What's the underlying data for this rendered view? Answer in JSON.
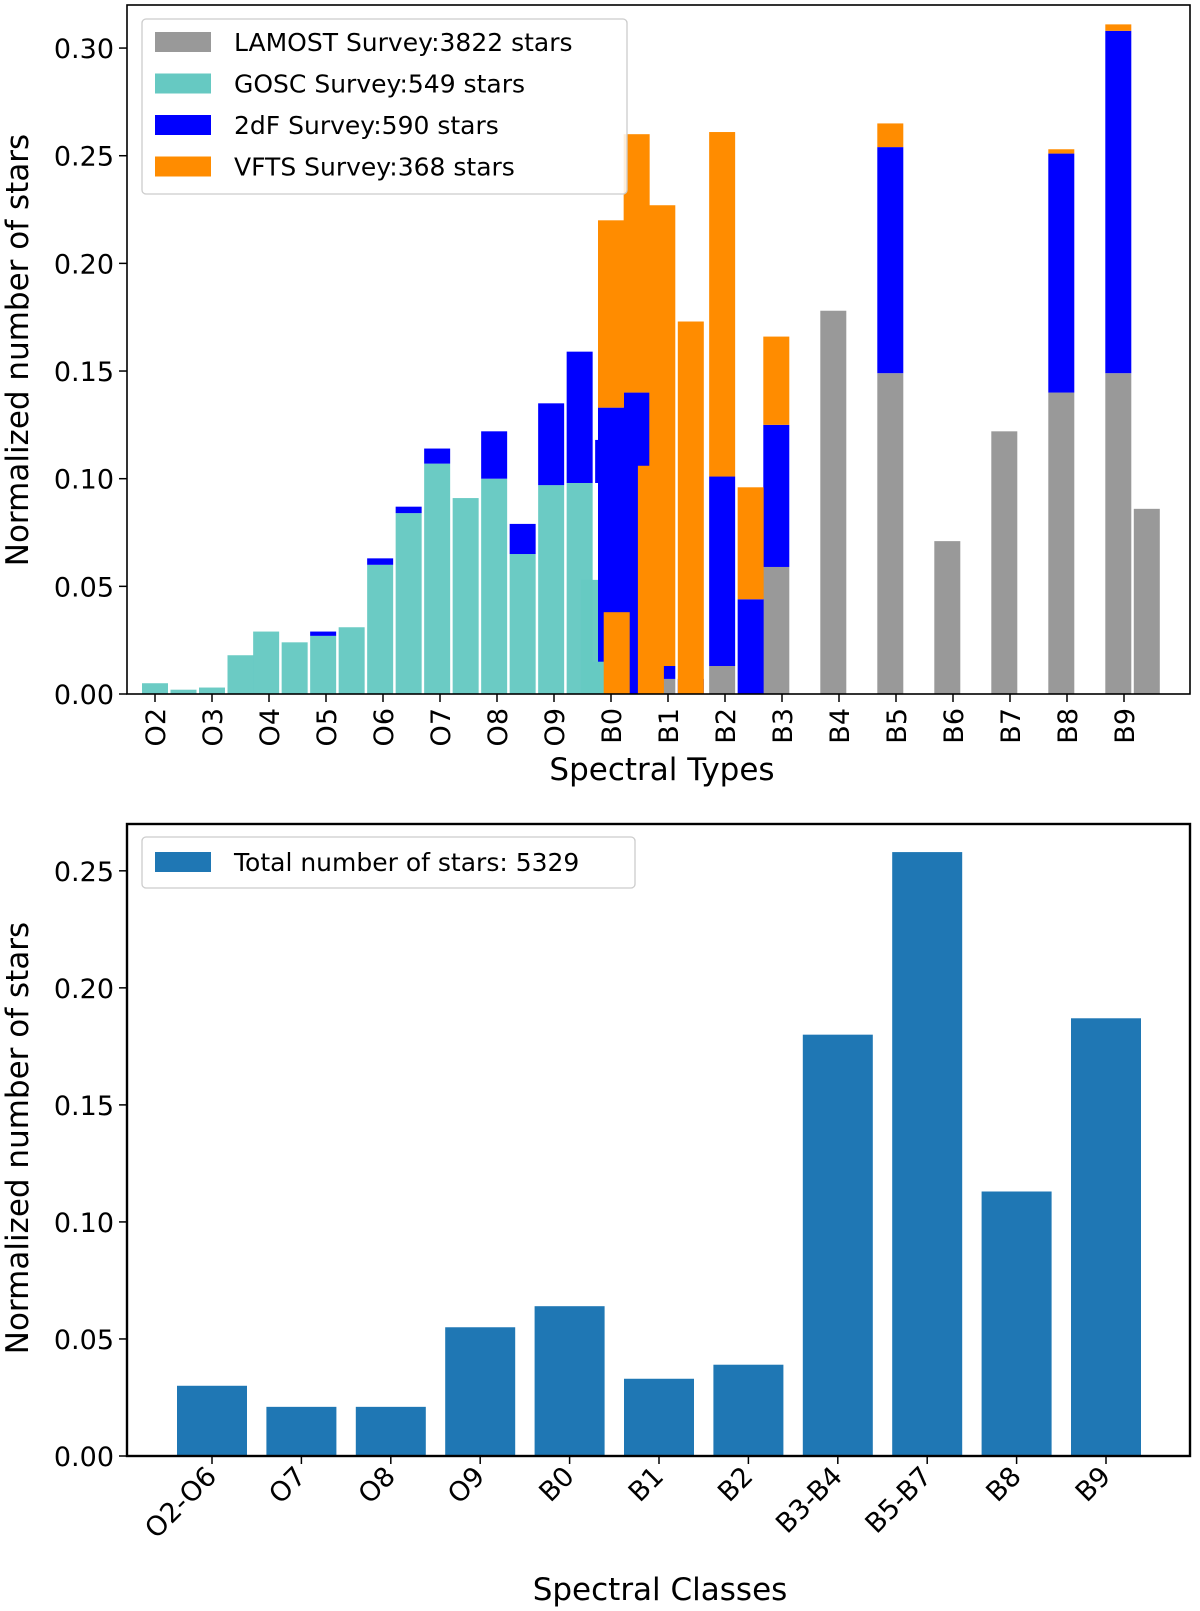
{
  "chart_data": [
    {
      "type": "bar",
      "stacked": true,
      "title": "",
      "xlabel": "Spectral Types",
      "ylabel": "Normalized number of stars",
      "ylim": [
        0,
        0.32
      ],
      "yticks": [
        "0.00",
        "0.05",
        "0.10",
        "0.15",
        "0.20",
        "0.25",
        "0.30"
      ],
      "xticks": [
        "O2",
        "O3",
        "O4",
        "O5",
        "O6",
        "O7",
        "O8",
        "O9",
        "B0",
        "B1",
        "B2",
        "B3",
        "B4",
        "B5",
        "B6",
        "B7",
        "B8",
        "B9"
      ],
      "legend": [
        {
          "label": "LAMOST Survey:3822 stars",
          "color": "#999999"
        },
        {
          "label": "GOSC Survey:549 stars",
          "color": "#66c9c2"
        },
        {
          "label": "2dF Survey:590 stars",
          "color": "#0000ff"
        },
        {
          "label": "VFTS Survey:368 stars",
          "color": "#ff8c00"
        }
      ],
      "legend_position": "top-left",
      "series": [
        {
          "name": "LAMOST Survey:3822 stars",
          "color": "#999999",
          "points": [
            [
              7.8,
              0.01
            ],
            [
              8.9,
              0.007
            ],
            [
              9.95,
              0.013
            ],
            [
              10.9,
              0.059
            ],
            [
              11.9,
              0.178
            ],
            [
              12.9,
              0.149
            ],
            [
              13.9,
              0.071
            ],
            [
              14.9,
              0.122
            ],
            [
              15.9,
              0.14
            ],
            [
              16.9,
              0.149
            ],
            [
              17.4,
              0.086
            ]
          ],
          "bases": [
            0,
            0,
            0,
            0,
            0,
            0,
            0,
            0,
            0,
            0,
            0
          ]
        },
        {
          "name": "GOSC Survey:549 stars",
          "color": "#66c9c2",
          "points": [
            [
              0.0,
              0.005
            ],
            [
              0.5,
              0.002
            ],
            [
              1.0,
              0.003
            ],
            [
              1.5,
              0.018
            ],
            [
              1.95,
              0.029
            ],
            [
              2.45,
              0.024
            ],
            [
              2.95,
              0.027
            ],
            [
              3.45,
              0.031
            ],
            [
              3.95,
              0.06
            ],
            [
              4.45,
              0.084
            ],
            [
              4.95,
              0.107
            ],
            [
              5.45,
              0.091
            ],
            [
              5.95,
              0.1
            ],
            [
              6.45,
              0.065
            ],
            [
              6.95,
              0.097
            ],
            [
              7.45,
              0.098
            ],
            [
              7.7,
              0.053
            ],
            [
              7.85,
              0.015
            ]
          ],
          "bases": [
            0,
            0,
            0,
            0,
            0,
            0,
            0,
            0,
            0,
            0,
            0,
            0,
            0,
            0,
            0,
            0,
            0,
            0
          ]
        },
        {
          "name": "2dF Survey:590 stars",
          "color": "#0000ff",
          "points": [
            [
              2.95,
              0.002
            ],
            [
              3.95,
              0.003
            ],
            [
              4.45,
              0.003
            ],
            [
              4.95,
              0.007
            ],
            [
              5.95,
              0.022
            ],
            [
              6.45,
              0.014
            ],
            [
              6.95,
              0.038
            ],
            [
              7.45,
              0.061
            ],
            [
              7.95,
              0.02
            ],
            [
              8.0,
              0.118
            ],
            [
              8.45,
              0.14
            ],
            [
              8.9,
              0.006
            ],
            [
              9.4,
              0.007
            ],
            [
              9.95,
              0.088
            ],
            [
              10.45,
              0.044
            ],
            [
              10.9,
              0.066
            ],
            [
              12.9,
              0.105
            ],
            [
              15.9,
              0.111
            ],
            [
              16.9,
              0.159
            ]
          ],
          "bases": [
            0.027,
            0.06,
            0.084,
            0.107,
            0.1,
            0.065,
            0.097,
            0.098,
            0.098,
            0.015,
            0,
            0.007,
            0,
            0.013,
            0,
            0.059,
            0.149,
            0.14,
            0.149
          ]
        },
        {
          "name": "VFTS Survey:368 stars",
          "color": "#ff8c00",
          "points": [
            [
              8.0,
              0.087
            ],
            [
              8.1,
              0.038
            ],
            [
              8.45,
              0.12
            ],
            [
              8.7,
              0.106
            ],
            [
              8.9,
              0.214
            ],
            [
              9.4,
              0.173
            ],
            [
              9.95,
              0.16
            ],
            [
              10.45,
              0.052
            ],
            [
              10.9,
              0.041
            ],
            [
              12.9,
              0.011
            ],
            [
              15.9,
              0.002
            ],
            [
              16.9,
              0.003
            ]
          ],
          "bases": [
            0.133,
            0,
            0.14,
            0,
            0.013,
            0,
            0.101,
            0.044,
            0.125,
            0.254,
            0.251,
            0.308
          ]
        }
      ]
    },
    {
      "type": "bar",
      "title": "",
      "xlabel": "Spectral Classes",
      "ylabel": "Normalized number of stars",
      "ylim": [
        0,
        0.27
      ],
      "yticks": [
        "0.00",
        "0.05",
        "0.10",
        "0.15",
        "0.20",
        "0.25"
      ],
      "categories": [
        "O2-O6",
        "O7",
        "O8",
        "O9",
        "B0",
        "B1",
        "B2",
        "B3-B4",
        "B5-B7",
        "B8",
        "B9"
      ],
      "values": [
        0.03,
        0.021,
        0.021,
        0.055,
        0.064,
        0.033,
        0.039,
        0.18,
        0.258,
        0.113,
        0.187
      ],
      "color": "#1f77b4",
      "legend": [
        {
          "label": "Total number of stars: 5329",
          "color": "#1f77b4"
        }
      ],
      "legend_position": "top-left"
    }
  ]
}
